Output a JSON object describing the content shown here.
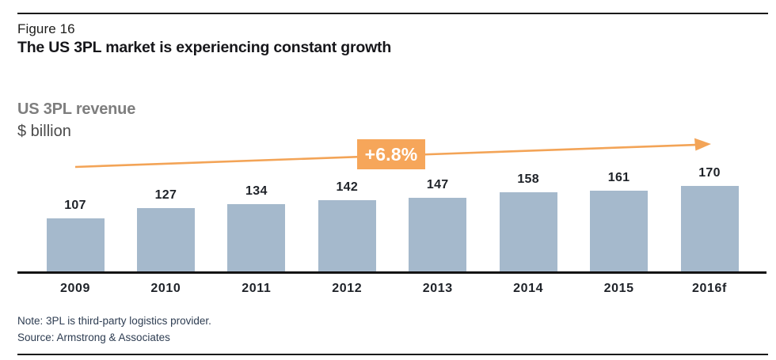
{
  "figure": {
    "label": "Figure 16",
    "title": "The US 3PL market is experiencing constant growth"
  },
  "chart_data": {
    "type": "bar",
    "title": "US 3PL revenue",
    "ylabel": "$ billion",
    "xlabel": "",
    "categories": [
      "2009",
      "2010",
      "2011",
      "2012",
      "2013",
      "2014",
      "2015",
      "2016f"
    ],
    "values": [
      107,
      127,
      134,
      142,
      147,
      158,
      161,
      170
    ],
    "ylim": [
      0,
      170
    ],
    "grid": false,
    "legend": "none",
    "bar_color": "#a5b9cc",
    "accent_color": "#f3a457",
    "annotation": {
      "label": "+6.8%",
      "type": "growth-trend-arrow"
    }
  },
  "footer": {
    "note": "Note: 3PL is third-party logistics provider.",
    "source": "Source: Armstrong & Associates"
  }
}
